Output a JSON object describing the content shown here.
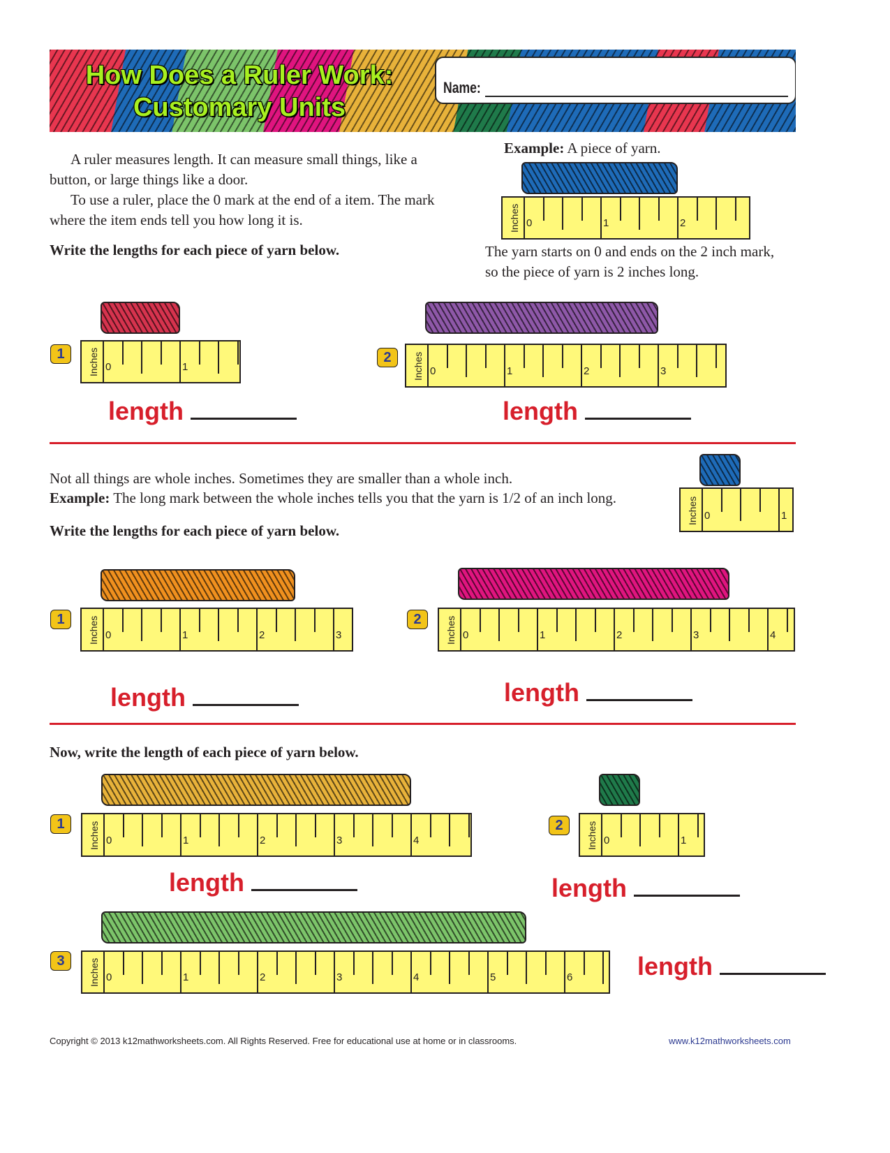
{
  "header": {
    "title_line1": "How Does a Ruler Work:",
    "title_line2": "Customary Units",
    "name_label": "Name:"
  },
  "intro": {
    "p1": "A ruler measures length. It can measure small things, like a button, or large things like a door.",
    "p2": "To use a ruler, place the 0 mark at the end of a item. The mark where the item ends tell you how long it is.",
    "instruction": "Write the lengths for each piece of yarn below."
  },
  "example1": {
    "label": "Example:",
    "text": "A piece of yarn.",
    "caption": "The yarn starts on 0 and ends on the 2 inch mark, so the piece of yarn is 2 inches long."
  },
  "section2": {
    "p1": "Not all things are whole inches. Sometimes they are smaller than a whole inch.",
    "example_label": "Example:",
    "example_text": "The long mark between the whole inches tells you that the yarn is 1/2 of an inch long.",
    "instruction": "Write the lengths for each piece of yarn below."
  },
  "section3": {
    "instruction": "Now, write the length of each piece of yarn below."
  },
  "ruler_unit_label": "Inches",
  "length_label": "length",
  "rulers": [
    {
      "id": "ex1",
      "number": "",
      "labels": [
        "0",
        "1",
        "2"
      ],
      "yarn_inches": 2,
      "ruler_span_inches": 2.95,
      "yarn_color": "#1e6bb8"
    },
    {
      "id": "s1p1",
      "number": "1",
      "labels": [
        "0",
        "1"
      ],
      "yarn_inches": 1,
      "ruler_span_inches": 1.8,
      "yarn_color": "#d6334e"
    },
    {
      "id": "s1p2",
      "number": "2",
      "labels": [
        "0",
        "1",
        "2",
        "3"
      ],
      "yarn_inches": 3,
      "ruler_span_inches": 3.9,
      "yarn_color": "#8e58a8"
    },
    {
      "id": "ex2",
      "number": "",
      "labels": [
        "0",
        "1"
      ],
      "yarn_inches": 0.5,
      "ruler_span_inches": 1.2,
      "yarn_color": "#1e6bb8"
    },
    {
      "id": "s2p1",
      "number": "1",
      "labels": [
        "0",
        "1",
        "2",
        "3"
      ],
      "yarn_inches": 2.5,
      "ruler_span_inches": 3.26,
      "yarn_color": "#f0901e"
    },
    {
      "id": "s2p2",
      "number": "2",
      "labels": [
        "0",
        "1",
        "2",
        "3",
        "4"
      ],
      "yarn_inches": 3.5,
      "ruler_span_inches": 4.36,
      "yarn_color": "#e0147f"
    },
    {
      "id": "s3p1",
      "number": "1",
      "labels": [
        "0",
        "1",
        "2",
        "3",
        "4"
      ],
      "yarn_inches": 4,
      "ruler_span_inches": 4.8,
      "yarn_color": "#e8b23a"
    },
    {
      "id": "s3p2",
      "number": "2",
      "labels": [
        "0",
        "1"
      ],
      "yarn_inches": 0.5,
      "ruler_span_inches": 1.35,
      "yarn_color": "#1f7a4a"
    },
    {
      "id": "s3p3",
      "number": "3",
      "labels": [
        "0",
        "1",
        "2",
        "3",
        "4",
        "5",
        "6"
      ],
      "yarn_inches": 5.5,
      "ruler_span_inches": 6.6,
      "yarn_color": "#7cc46a"
    }
  ],
  "footer": {
    "copyright": "Copyright © 2013  k12mathworksheets.com. All Rights Reserved. Free for educational use at home or in classrooms.",
    "url": "www.k12mathworksheets.com"
  }
}
